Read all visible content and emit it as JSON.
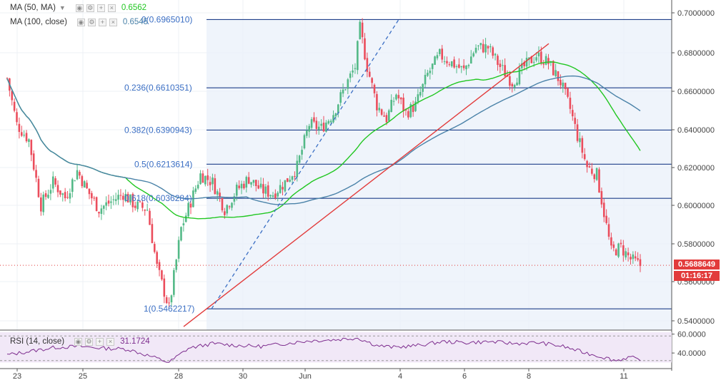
{
  "legend": {
    "ma50": {
      "label": "MA (50, MA)",
      "value": "0.6562",
      "color": "#22c722"
    },
    "ma100": {
      "label": "MA (100, close)",
      "value": "0.6545",
      "color": "#4a82a8"
    },
    "rsi": {
      "label": "RSI (14, close)",
      "value": "31.1724",
      "color": "#7d2d8e"
    },
    "controls": [
      "eye-icon",
      "gear-icon",
      "plus-icon",
      "close-icon"
    ]
  },
  "price_tags": {
    "last_price": "0.5688649",
    "countdown": "01:16:17"
  },
  "chart_data": [
    {
      "type": "candlestick",
      "x_tick_labels": [
        "23",
        "25",
        "28",
        "30",
        "Jun",
        "4",
        "6",
        "8",
        "11"
      ],
      "y_tick_labels": [
        "0.7000000",
        "0.6800000",
        "0.6600000",
        "0.6400000",
        "0.6200000",
        "0.6000000",
        "0.5800000",
        "0.5600000",
        "0.5400000"
      ],
      "ylim": [
        0.536,
        0.702
      ],
      "fibonacci": [
        {
          "label": "0(0.6965010)",
          "value": 0.696501
        },
        {
          "label": "0.236(0.6610351)",
          "value": 0.6610351
        },
        {
          "label": "0.382(0.6390943)",
          "value": 0.6390943
        },
        {
          "label": "0.5(0.6213614)",
          "value": 0.6213614
        },
        {
          "label": "0.618(0.6036284)",
          "value": 0.6036284
        },
        {
          "label": "1(0.5462217)",
          "value": 0.5462217
        }
      ],
      "last_price": 0.5688649,
      "colors": {
        "up": "#53b987",
        "down": "#eb4d5c",
        "trendline": "#e23b3b",
        "fib": "#1f3f8a",
        "ma50": "#22c722",
        "ma100": "#4a82a8"
      },
      "anchors": [
        {
          "day": 22.0,
          "price": 0.666
        },
        {
          "day": 22.4,
          "price": 0.642
        },
        {
          "day": 22.9,
          "price": 0.634
        },
        {
          "day": 23.4,
          "price": 0.6
        },
        {
          "day": 23.9,
          "price": 0.612
        },
        {
          "day": 24.4,
          "price": 0.604
        },
        {
          "day": 24.9,
          "price": 0.618
        },
        {
          "day": 25.3,
          "price": 0.608
        },
        {
          "day": 25.8,
          "price": 0.598
        },
        {
          "day": 26.3,
          "price": 0.602
        },
        {
          "day": 26.8,
          "price": 0.606
        },
        {
          "day": 27.3,
          "price": 0.6
        },
        {
          "day": 27.8,
          "price": 0.598
        },
        {
          "day": 28.2,
          "price": 0.568
        },
        {
          "day": 28.7,
          "price": 0.5465
        },
        {
          "day": 29.2,
          "price": 0.588
        },
        {
          "day": 29.6,
          "price": 0.602
        },
        {
          "day": 30.0,
          "price": 0.616
        },
        {
          "day": 30.5,
          "price": 0.612
        },
        {
          "day": 31.0,
          "price": 0.598
        },
        {
          "day": 31.5,
          "price": 0.608
        },
        {
          "day": 32.0,
          "price": 0.614
        },
        {
          "day": 32.5,
          "price": 0.608
        },
        {
          "day": 33.0,
          "price": 0.606
        },
        {
          "day": 33.5,
          "price": 0.612
        },
        {
          "day": 34.0,
          "price": 0.62
        },
        {
          "day": 34.5,
          "price": 0.642
        },
        {
          "day": 35.0,
          "price": 0.64
        },
        {
          "day": 35.5,
          "price": 0.648
        },
        {
          "day": 36.0,
          "price": 0.662
        },
        {
          "day": 36.4,
          "price": 0.672
        },
        {
          "day": 36.6,
          "price": 0.692
        },
        {
          "day": 36.9,
          "price": 0.672
        },
        {
          "day": 37.3,
          "price": 0.652
        },
        {
          "day": 37.7,
          "price": 0.645
        },
        {
          "day": 38.1,
          "price": 0.658
        },
        {
          "day": 38.5,
          "price": 0.648
        },
        {
          "day": 38.9,
          "price": 0.652
        },
        {
          "day": 39.4,
          "price": 0.668
        },
        {
          "day": 39.9,
          "price": 0.678
        },
        {
          "day": 40.4,
          "price": 0.674
        },
        {
          "day": 40.9,
          "price": 0.67
        },
        {
          "day": 41.4,
          "price": 0.682
        },
        {
          "day": 41.9,
          "price": 0.682
        },
        {
          "day": 42.4,
          "price": 0.672
        },
        {
          "day": 42.9,
          "price": 0.664
        },
        {
          "day": 43.4,
          "price": 0.672
        },
        {
          "day": 43.9,
          "price": 0.678
        },
        {
          "day": 44.4,
          "price": 0.674
        },
        {
          "day": 44.9,
          "price": 0.664
        },
        {
          "day": 45.3,
          "price": 0.65
        },
        {
          "day": 45.6,
          "price": 0.636
        },
        {
          "day": 46.0,
          "price": 0.62
        },
        {
          "day": 46.4,
          "price": 0.616
        },
        {
          "day": 46.7,
          "price": 0.596
        },
        {
          "day": 47.0,
          "price": 0.576
        },
        {
          "day": 47.4,
          "price": 0.578
        },
        {
          "day": 47.8,
          "price": 0.572
        },
        {
          "day": 48.2,
          "price": 0.5688
        }
      ]
    },
    {
      "type": "line",
      "name": "RSI (14, close)",
      "y_tick_labels": [
        "60.0000",
        "40.0000"
      ],
      "ylim": [
        25,
        62
      ],
      "bands": [
        70,
        30
      ],
      "anchors": [
        {
          "day": 22.0,
          "rsi": 38
        },
        {
          "day": 23.0,
          "rsi": 42
        },
        {
          "day": 24.0,
          "rsi": 46
        },
        {
          "day": 25.0,
          "rsi": 47
        },
        {
          "day": 26.0,
          "rsi": 45
        },
        {
          "day": 27.0,
          "rsi": 44
        },
        {
          "day": 28.0,
          "rsi": 36
        },
        {
          "day": 28.7,
          "rsi": 30
        },
        {
          "day": 29.5,
          "rsi": 45
        },
        {
          "day": 30.5,
          "rsi": 50
        },
        {
          "day": 31.5,
          "rsi": 48
        },
        {
          "day": 32.5,
          "rsi": 47
        },
        {
          "day": 33.5,
          "rsi": 50
        },
        {
          "day": 34.5,
          "rsi": 53
        },
        {
          "day": 35.5,
          "rsi": 54
        },
        {
          "day": 36.5,
          "rsi": 56
        },
        {
          "day": 37.3,
          "rsi": 48
        },
        {
          "day": 38.0,
          "rsi": 46
        },
        {
          "day": 39.0,
          "rsi": 48
        },
        {
          "day": 40.0,
          "rsi": 52
        },
        {
          "day": 41.0,
          "rsi": 51
        },
        {
          "day": 42.0,
          "rsi": 52
        },
        {
          "day": 43.0,
          "rsi": 50
        },
        {
          "day": 44.0,
          "rsi": 51
        },
        {
          "day": 45.0,
          "rsi": 47
        },
        {
          "day": 45.8,
          "rsi": 41
        },
        {
          "day": 46.6,
          "rsi": 36
        },
        {
          "day": 47.2,
          "rsi": 32
        },
        {
          "day": 47.8,
          "rsi": 36
        },
        {
          "day": 48.2,
          "rsi": 31.17
        }
      ]
    }
  ]
}
